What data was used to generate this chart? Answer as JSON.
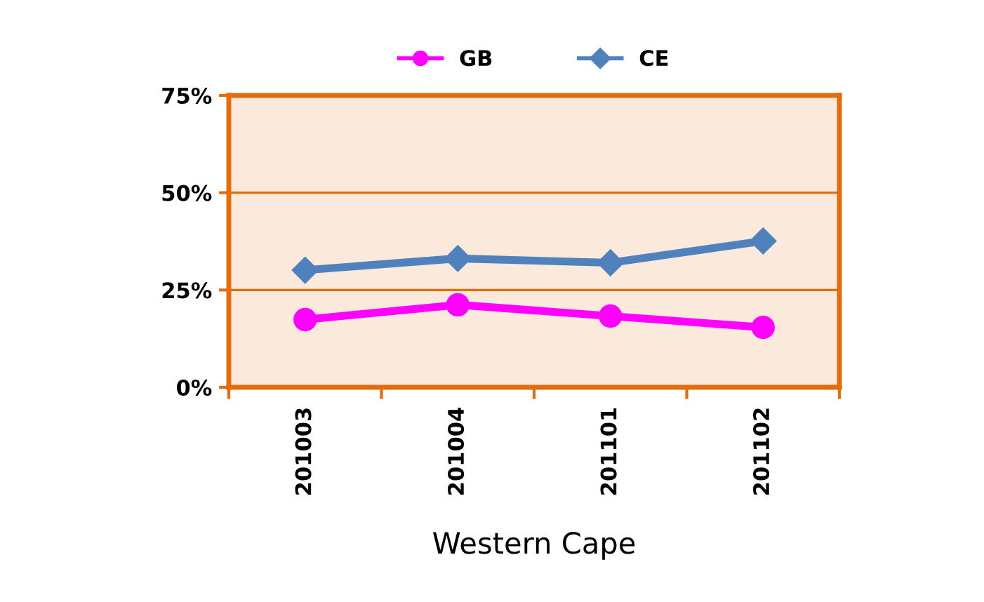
{
  "chart_data": {
    "type": "line",
    "xlabel": "Western Cape",
    "categories": [
      "201003",
      "201004",
      "201101",
      "201102"
    ],
    "series": [
      {
        "name": "GB",
        "color": "#ff00ff",
        "marker": "circle",
        "values": [
          17.4,
          21.2,
          18.3,
          15.4
        ]
      },
      {
        "name": "CE",
        "color": "#4f81bd",
        "marker": "diamond",
        "values": [
          30.1,
          33.1,
          32.0,
          37.6
        ]
      }
    ],
    "ylim": [
      0,
      75
    ],
    "yticks": [
      {
        "value": 0,
        "label": "0%"
      },
      {
        "value": 25,
        "label": "25%"
      },
      {
        "value": 50,
        "label": "50%"
      },
      {
        "value": 75,
        "label": "75%"
      }
    ],
    "grid": "y",
    "legend": "top",
    "line_style": "solid"
  }
}
